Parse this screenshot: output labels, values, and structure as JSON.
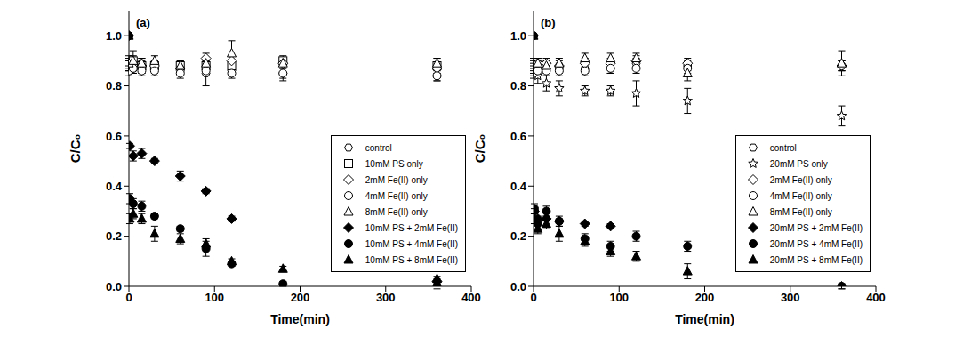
{
  "chart_data": [
    {
      "type": "scatter",
      "title": "(a)",
      "x_label": "Time(min)",
      "y_label": "C/C₀",
      "xlim": [
        0,
        400
      ],
      "xticks": [
        0,
        100,
        200,
        300,
        400
      ],
      "ylim": [
        0,
        1.1
      ],
      "yticks": [
        {
          "value": 0,
          "label": "0.0"
        },
        {
          "value": 0.2,
          "label": "0.2"
        },
        {
          "value": 0.4,
          "label": "0.4"
        },
        {
          "value": 0.6,
          "label": "0.6"
        },
        {
          "value": 0.8,
          "label": "0.8"
        },
        {
          "value": 1,
          "label": "1.0"
        }
      ],
      "legend": "lower right",
      "series": [
        {
          "name": "control",
          "color": "#000000",
          "marker": "hexagon_open",
          "x": [
            0,
            5,
            15,
            30,
            60,
            90,
            120,
            180,
            360
          ],
          "values": [
            0.88,
            0.87,
            0.87,
            0.87,
            0.86,
            0.85,
            0.86,
            0.85,
            0.84
          ],
          "errors": [
            0.02,
            0.02,
            0.02,
            0.02,
            0.02,
            0.05,
            0.02,
            0.03,
            0.02
          ]
        },
        {
          "name": "10mM PS only",
          "color": "#000000",
          "marker": "square_open",
          "x": [
            0,
            5,
            15,
            30,
            60,
            90,
            120,
            180,
            360
          ],
          "values": [
            0.89,
            0.9,
            0.88,
            0.88,
            0.88,
            0.88,
            0.88,
            0.9,
            0.88
          ],
          "errors": [
            0.03,
            0.04,
            0.03,
            0.02,
            0.02,
            0.02,
            0.02,
            0.02,
            0.03
          ]
        },
        {
          "name": "2mM Fe(II) only",
          "color": "#000000",
          "marker": "diamond_open",
          "x": [
            0,
            5,
            15,
            30,
            60,
            90,
            120,
            180,
            360
          ],
          "values": [
            0.88,
            0.88,
            0.88,
            0.88,
            0.87,
            0.91,
            0.9,
            0.89,
            0.87
          ],
          "errors": [
            0.02,
            0.02,
            0.02,
            0.02,
            0.02,
            0.02,
            0.02,
            0.02,
            0.02
          ]
        },
        {
          "name": "4mM Fe(II) only",
          "color": "#000000",
          "marker": "circle_open",
          "x": [
            0,
            5,
            15,
            30,
            60,
            90,
            120,
            180,
            360
          ],
          "values": [
            0.86,
            0.87,
            0.86,
            0.86,
            0.85,
            0.86,
            0.85,
            0.85,
            0.84
          ],
          "errors": [
            0.02,
            0.02,
            0.02,
            0.02,
            0.02,
            0.02,
            0.02,
            0.02,
            0.02
          ]
        },
        {
          "name": "8mM Fe(II) only",
          "color": "#000000",
          "marker": "triangle_open",
          "x": [
            0,
            5,
            15,
            30,
            60,
            90,
            120,
            180,
            360
          ],
          "values": [
            0.89,
            0.9,
            0.89,
            0.9,
            0.88,
            0.89,
            0.93,
            0.89,
            0.89
          ],
          "errors": [
            0.02,
            0.02,
            0.02,
            0.02,
            0.02,
            0.02,
            0.05,
            0.02,
            0.02
          ]
        },
        {
          "name": "10mM PS + 2mM Fe(II)",
          "color": "#000000",
          "marker": "diamond_filled",
          "x": [
            0,
            1,
            5,
            15,
            30,
            60,
            90,
            120,
            360
          ],
          "values": [
            1.0,
            0.56,
            0.52,
            0.53,
            0.5,
            0.44,
            0.38,
            0.27,
            0.02
          ],
          "errors": [
            0,
            0.01,
            0.02,
            0.02,
            0.01,
            0.02,
            0.01,
            0.01,
            0.01
          ]
        },
        {
          "name": "10mM PS + 4mM Fe(II)",
          "color": "#000000",
          "marker": "circle_filled",
          "x": [
            0,
            1,
            5,
            15,
            30,
            60,
            90,
            120,
            180,
            360
          ],
          "values": [
            1.0,
            0.35,
            0.33,
            0.32,
            0.28,
            0.23,
            0.15,
            0.09,
            0.01,
            0.0
          ],
          "errors": [
            0,
            0.02,
            0.02,
            0.02,
            0.01,
            0.01,
            0.03,
            0.01,
            0.01,
            0.01
          ]
        },
        {
          "name": "10mM PS + 8mM Fe(II)",
          "color": "#000000",
          "marker": "triangle_filled",
          "x": [
            0,
            1,
            5,
            15,
            30,
            60,
            90,
            120,
            180,
            360
          ],
          "values": [
            1.0,
            0.27,
            0.29,
            0.27,
            0.21,
            0.19,
            0.17,
            0.1,
            0.07,
            0.03
          ],
          "errors": [
            0,
            0.02,
            0.02,
            0.02,
            0.03,
            0.02,
            0.02,
            0.01,
            0.01,
            0.01
          ]
        }
      ]
    },
    {
      "type": "scatter",
      "title": "(b)",
      "x_label": "Time(min)",
      "y_label": "C/C₀",
      "xlim": [
        0,
        400
      ],
      "xticks": [
        0,
        100,
        200,
        300,
        400
      ],
      "ylim": [
        0,
        1.1
      ],
      "yticks": [
        {
          "value": 0,
          "label": "0.0"
        },
        {
          "value": 0.2,
          "label": "0.2"
        },
        {
          "value": 0.4,
          "label": "0.4"
        },
        {
          "value": 0.6,
          "label": "0.6"
        },
        {
          "value": 0.8,
          "label": "0.8"
        },
        {
          "value": 1,
          "label": "1.0"
        }
      ],
      "legend": "lower right",
      "series": [
        {
          "name": "control",
          "color": "#000000",
          "marker": "hexagon_open",
          "x": [
            0,
            5,
            15,
            30,
            60,
            90,
            120,
            180,
            360
          ],
          "values": [
            0.87,
            0.88,
            0.87,
            0.87,
            0.87,
            0.87,
            0.89,
            0.88,
            0.88
          ],
          "errors": [
            0.02,
            0.02,
            0.02,
            0.02,
            0.02,
            0.02,
            0.02,
            0.02,
            0.02
          ]
        },
        {
          "name": "20mM PS only",
          "color": "#000000",
          "marker": "star_open",
          "x": [
            0,
            5,
            15,
            30,
            60,
            90,
            120,
            180,
            360
          ],
          "values": [
            0.86,
            0.84,
            0.81,
            0.79,
            0.78,
            0.78,
            0.77,
            0.74,
            0.68
          ],
          "errors": [
            0.02,
            0.03,
            0.03,
            0.03,
            0.02,
            0.02,
            0.05,
            0.05,
            0.04
          ]
        },
        {
          "name": "2mM Fe(II) only",
          "color": "#000000",
          "marker": "diamond_open",
          "x": [
            0,
            5,
            15,
            30,
            60,
            90,
            120,
            180,
            360
          ],
          "values": [
            0.88,
            0.89,
            0.89,
            0.88,
            0.89,
            0.89,
            0.9,
            0.89,
            0.88
          ],
          "errors": [
            0.02,
            0.02,
            0.02,
            0.02,
            0.02,
            0.02,
            0.02,
            0.02,
            0.02
          ]
        },
        {
          "name": "4mM Fe(II) only",
          "color": "#000000",
          "marker": "circle_open",
          "x": [
            0,
            5,
            15,
            30,
            60,
            90,
            120,
            180,
            360
          ],
          "values": [
            0.85,
            0.86,
            0.86,
            0.86,
            0.86,
            0.87,
            0.87,
            0.87,
            0.88
          ],
          "errors": [
            0.02,
            0.02,
            0.02,
            0.02,
            0.02,
            0.02,
            0.02,
            0.02,
            0.02
          ]
        },
        {
          "name": "8mM Fe(II) only",
          "color": "#000000",
          "marker": "triangle_open",
          "x": [
            0,
            5,
            15,
            30,
            60,
            90,
            120,
            180,
            360
          ],
          "values": [
            0.89,
            0.89,
            0.88,
            0.89,
            0.91,
            0.91,
            0.91,
            0.85,
            0.89
          ],
          "errors": [
            0.02,
            0.02,
            0.02,
            0.02,
            0.02,
            0.02,
            0.02,
            0.03,
            0.05
          ]
        },
        {
          "name": "20mM PS + 2mM Fe(II)",
          "color": "#000000",
          "marker": "diamond_filled",
          "x": [
            0,
            1,
            5,
            15,
            30,
            60,
            90
          ],
          "values": [
            1.0,
            0.3,
            0.27,
            0.27,
            0.26,
            0.25,
            0.24
          ],
          "errors": [
            0,
            0.01,
            0.01,
            0.01,
            0.01,
            0.01,
            0.01
          ]
        },
        {
          "name": "20mM PS + 4mM Fe(II)",
          "color": "#000000",
          "marker": "circle_filled",
          "x": [
            0,
            1,
            5,
            15,
            30,
            60,
            90,
            120,
            180,
            360
          ],
          "values": [
            1.0,
            0.31,
            0.25,
            0.3,
            0.26,
            0.19,
            0.16,
            0.2,
            0.16,
            0.0
          ],
          "errors": [
            0,
            0.02,
            0.02,
            0.02,
            0.02,
            0.02,
            0.02,
            0.02,
            0.02,
            0.01
          ]
        },
        {
          "name": "20mM PS + 8mM Fe(II)",
          "color": "#000000",
          "marker": "triangle_filled",
          "x": [
            0,
            1,
            5,
            15,
            30,
            60,
            90,
            120,
            180,
            360
          ],
          "values": [
            1.0,
            0.27,
            0.23,
            0.25,
            0.21,
            0.18,
            0.14,
            0.12,
            0.06,
            0.0
          ],
          "errors": [
            0,
            0.02,
            0.02,
            0.02,
            0.03,
            0.02,
            0.02,
            0.02,
            0.03,
            0.01
          ]
        }
      ]
    }
  ]
}
